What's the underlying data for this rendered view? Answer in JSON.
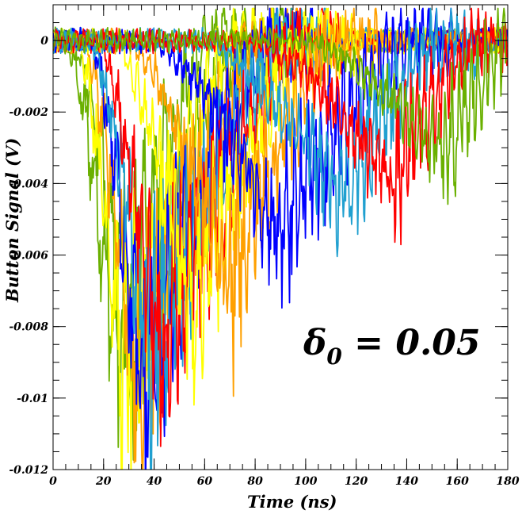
{
  "chart_data": {
    "type": "line",
    "xlabel": "Time (ns)",
    "ylabel": "Button Signal (V)",
    "xlim": [
      0,
      180
    ],
    "ylim": [
      -0.012,
      0.001
    ],
    "x_ticks": [
      0,
      20,
      40,
      60,
      80,
      100,
      120,
      140,
      160,
      180
    ],
    "x_tick_labels": [
      "0",
      "20",
      "40",
      "60",
      "80",
      "100",
      "120",
      "140",
      "160",
      "180"
    ],
    "y_ticks": [
      0,
      -0.002,
      -0.004,
      -0.006,
      -0.008,
      -0.01,
      -0.012
    ],
    "y_tick_labels": [
      "0",
      "-0.002",
      "-0.004",
      "-0.006",
      "-0.008",
      "-0.01",
      "-0.012"
    ],
    "grid": false,
    "annotation": {
      "symbol": "δ",
      "subscript": "0",
      "text": " = 0.05"
    },
    "series": [
      {
        "color": "#6ab000",
        "t_start": 5,
        "t_min": 25,
        "v_min": -0.0085,
        "t_end": 60
      },
      {
        "color": "#6ab000",
        "t_start": 8,
        "t_min": 30,
        "v_min": -0.009,
        "t_end": 75
      },
      {
        "color": "#ffff00",
        "t_start": 10,
        "t_min": 28,
        "v_min": -0.0097,
        "t_end": 70
      },
      {
        "color": "#ffa000",
        "t_start": 12,
        "t_min": 33,
        "v_min": -0.0097,
        "t_end": 80
      },
      {
        "color": "#0000ff",
        "t_start": 15,
        "t_min": 35,
        "v_min": -0.0099,
        "t_end": 85
      },
      {
        "color": "#20a0d0",
        "t_start": 15,
        "t_min": 38,
        "v_min": -0.009,
        "t_end": 90
      },
      {
        "color": "#ff0000",
        "t_start": 18,
        "t_min": 42,
        "v_min": -0.0088,
        "t_end": 95
      },
      {
        "color": "#ffff00",
        "t_start": 25,
        "t_min": 55,
        "v_min": -0.0075,
        "t_end": 100
      },
      {
        "color": "#ffa000",
        "t_start": 30,
        "t_min": 70,
        "v_min": -0.0068,
        "t_end": 110
      },
      {
        "color": "#0000ff",
        "t_start": 40,
        "t_min": 90,
        "v_min": -0.0055,
        "t_end": 140
      },
      {
        "color": "#20a0d0",
        "t_start": 60,
        "t_min": 115,
        "v_min": -0.0045,
        "t_end": 150
      },
      {
        "color": "#ff0000",
        "t_start": 80,
        "t_min": 135,
        "v_min": -0.004,
        "t_end": 165
      },
      {
        "color": "#6ab000",
        "t_start": 100,
        "t_min": 155,
        "v_min": -0.0033,
        "t_end": 180
      }
    ]
  }
}
